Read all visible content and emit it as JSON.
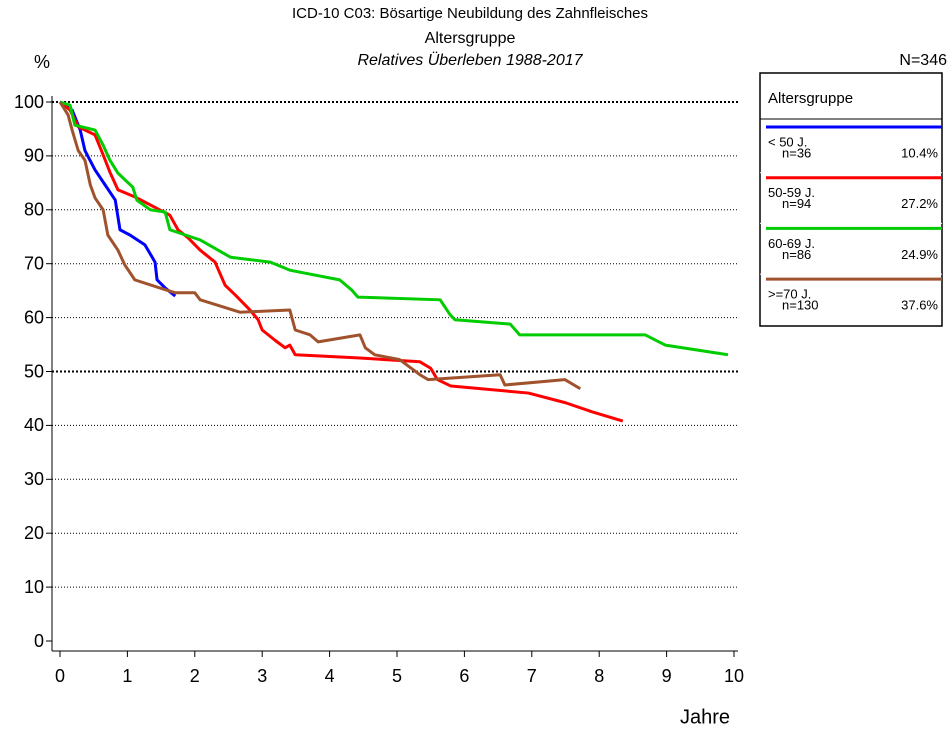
{
  "chart_data": {
    "type": "line",
    "title": "ICD-10 C03: Bösartige Neubildung des Zahnfleisches",
    "subtitle": "Altersgruppe",
    "subtitle2": "Relatives Überleben 1988-2017",
    "y_label": "%",
    "x_label": "Jahre",
    "total_label": "N=346",
    "legend_title": "Altersgruppe",
    "xlim": [
      0,
      10
    ],
    "xticks": [
      0,
      1,
      2,
      3,
      4,
      5,
      6,
      7,
      8,
      9,
      10
    ],
    "ylim": [
      0,
      100
    ],
    "yticks": [
      0,
      10,
      20,
      30,
      40,
      50,
      60,
      70,
      80,
      90,
      100
    ],
    "grid": true,
    "emphasized_gridlines": [
      50,
      100
    ],
    "series": [
      {
        "name": "< 50 J.",
        "n_label": "n=36",
        "share_label": "10.4%",
        "color": "#0000ff",
        "x": [
          0,
          0.18,
          0.3,
          0.37,
          0.52,
          0.67,
          0.82,
          0.89,
          1.04,
          1.26,
          1.41,
          1.44,
          1.56,
          1.71
        ],
        "values": [
          100,
          98.5,
          94.8,
          91,
          87.4,
          84.6,
          81.8,
          76.3,
          75.3,
          73.5,
          70.3,
          67,
          65.5,
          64
        ]
      },
      {
        "name": "50-59 J.",
        "n_label": "n=94",
        "share_label": "27.2%",
        "color": "#ff0000",
        "x": [
          0,
          0.15,
          0.27,
          0.52,
          0.64,
          0.74,
          0.86,
          1.11,
          1.34,
          1.63,
          1.75,
          1.9,
          2.08,
          2.3,
          2.45,
          2.6,
          2.82,
          2.94,
          3.0,
          3.19,
          3.34,
          3.41,
          3.49,
          4.45,
          5.34,
          5.5,
          5.6,
          5.8,
          6.95,
          7.5,
          7.9,
          8.35
        ],
        "values": [
          100,
          98.5,
          95.4,
          93.9,
          90.2,
          87,
          83.7,
          82.4,
          80.9,
          79,
          76.3,
          74.8,
          72.5,
          70.3,
          66,
          64.2,
          61.4,
          59.6,
          57.7,
          55.8,
          54.4,
          54.9,
          53.1,
          52.5,
          51.8,
          50.6,
          48.5,
          47.3,
          46,
          44.2,
          42.5,
          40.8
        ]
      },
      {
        "name": "60-69 J.",
        "n_label": "n=86",
        "share_label": "24.9%",
        "color": "#00cc00",
        "x": [
          0,
          0.15,
          0.22,
          0.52,
          0.64,
          0.74,
          0.86,
          1.08,
          1.14,
          1.34,
          1.56,
          1.63,
          2.08,
          2.53,
          3.12,
          3.41,
          4.15,
          4.33,
          4.42,
          5.64,
          5.79,
          5.86,
          6.68,
          6.82,
          8.68,
          8.98,
          9.91
        ],
        "values": [
          100,
          99.4,
          95.7,
          94.8,
          92,
          89.2,
          86.8,
          84.2,
          81.8,
          80,
          79.6,
          76.3,
          74.4,
          71.2,
          70.3,
          68.8,
          67,
          65.1,
          63.8,
          63.3,
          60.5,
          59.6,
          58.8,
          56.8,
          56.8,
          54.9,
          53.1
        ]
      },
      {
        "name": ">=70 J.",
        "n_label": "n=130",
        "share_label": "37.6%",
        "color": "#a0522d",
        "x": [
          0,
          0.12,
          0.18,
          0.27,
          0.37,
          0.45,
          0.52,
          0.64,
          0.71,
          0.86,
          0.96,
          1.11,
          1.48,
          1.71,
          2.0,
          2.08,
          2.67,
          3.41,
          3.49,
          3.71,
          3.83,
          4.45,
          4.53,
          4.67,
          5.04,
          5.34,
          5.46,
          6.53,
          6.6,
          7.49,
          7.72
        ],
        "values": [
          100,
          97.6,
          94.8,
          91,
          89.2,
          84.6,
          82.2,
          80,
          75.3,
          72.5,
          69.8,
          67,
          65.5,
          64.6,
          64.6,
          63.3,
          61,
          61.4,
          57.7,
          56.8,
          55.5,
          56.8,
          54.4,
          53.1,
          52.2,
          49.4,
          48.5,
          49.4,
          47.5,
          48.5,
          46.8
        ]
      }
    ]
  }
}
